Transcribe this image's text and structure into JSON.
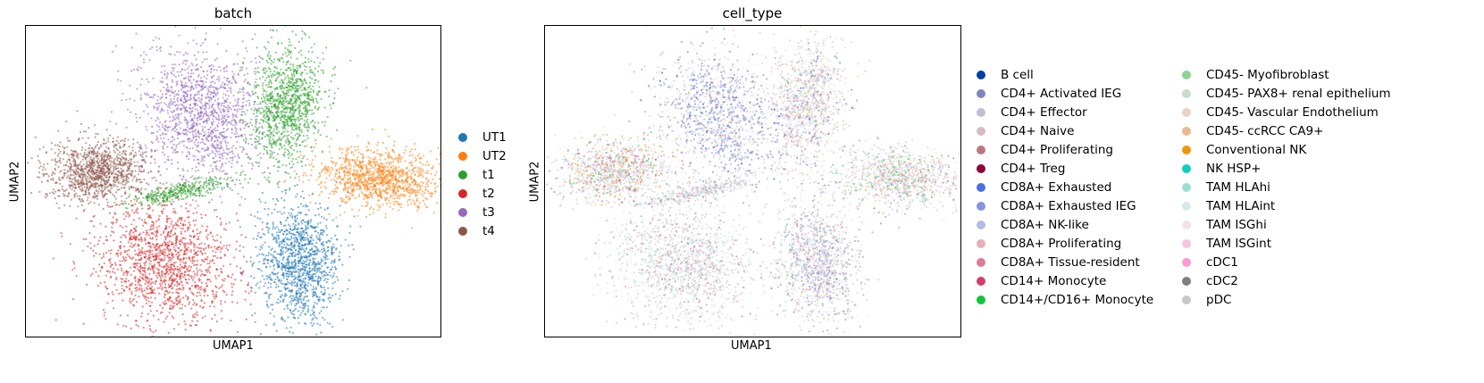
{
  "chart_data": [
    {
      "type": "scatter",
      "title": "batch",
      "xlabel": "UMAP1",
      "ylabel": "UMAP2",
      "grid": false,
      "legend_placement": "right",
      "series": [
        {
          "name": "UT1",
          "color": "#1f77b4"
        },
        {
          "name": "UT2",
          "color": "#ff7f0e"
        },
        {
          "name": "t1",
          "color": "#2ca02c"
        },
        {
          "name": "t2",
          "color": "#d62728"
        },
        {
          "name": "t3",
          "color": "#9467bd"
        },
        {
          "name": "t4",
          "color": "#8c564b"
        }
      ]
    },
    {
      "type": "scatter",
      "title": "cell_type",
      "xlabel": "UMAP1",
      "ylabel": "UMAP2",
      "grid": false,
      "legend_placement": "right",
      "series": [
        {
          "name": "B cell",
          "color": "#023fa5"
        },
        {
          "name": "CD4+ Activated IEG",
          "color": "#7d87b9"
        },
        {
          "name": "CD4+ Effector",
          "color": "#bec1d4"
        },
        {
          "name": "CD4+ Naive",
          "color": "#d6bcc0"
        },
        {
          "name": "CD4+ Proliferating",
          "color": "#bb7784"
        },
        {
          "name": "CD4+ Treg",
          "color": "#8e063b"
        },
        {
          "name": "CD8A+ Exhausted",
          "color": "#4a6fe3"
        },
        {
          "name": "CD8A+ Exhausted IEG",
          "color": "#8595e1"
        },
        {
          "name": "CD8A+ NK-like",
          "color": "#b5bbe3"
        },
        {
          "name": "CD8A+ Proliferating",
          "color": "#e6afb9"
        },
        {
          "name": "CD8A+ Tissue-resident",
          "color": "#e07b91"
        },
        {
          "name": "CD14+ Monocyte",
          "color": "#d33f6a"
        },
        {
          "name": "CD14+/CD16+ Monocyte",
          "color": "#11c638"
        },
        {
          "name": "CD45- Myofibroblast",
          "color": "#8dd593"
        },
        {
          "name": "CD45- PAX8+ renal epithelium",
          "color": "#c6dec7"
        },
        {
          "name": "CD45- Vascular Endothelium",
          "color": "#ead3c6"
        },
        {
          "name": "CD45- ccRCC CA9+",
          "color": "#f0b98d"
        },
        {
          "name": "Conventional NK",
          "color": "#ef9708"
        },
        {
          "name": "NK HSP+",
          "color": "#0fcfc0"
        },
        {
          "name": "TAM HLAhi",
          "color": "#9cded6"
        },
        {
          "name": "TAM HLAint",
          "color": "#d5eae7"
        },
        {
          "name": "TAM ISGhi",
          "color": "#f3e1eb"
        },
        {
          "name": "TAM ISGint",
          "color": "#f6c4e1"
        },
        {
          "name": "cDC1",
          "color": "#f79cd4"
        },
        {
          "name": "cDC2",
          "color": "#7f7f7f"
        },
        {
          "name": "pDC",
          "color": "#c7c7c7"
        }
      ]
    }
  ]
}
